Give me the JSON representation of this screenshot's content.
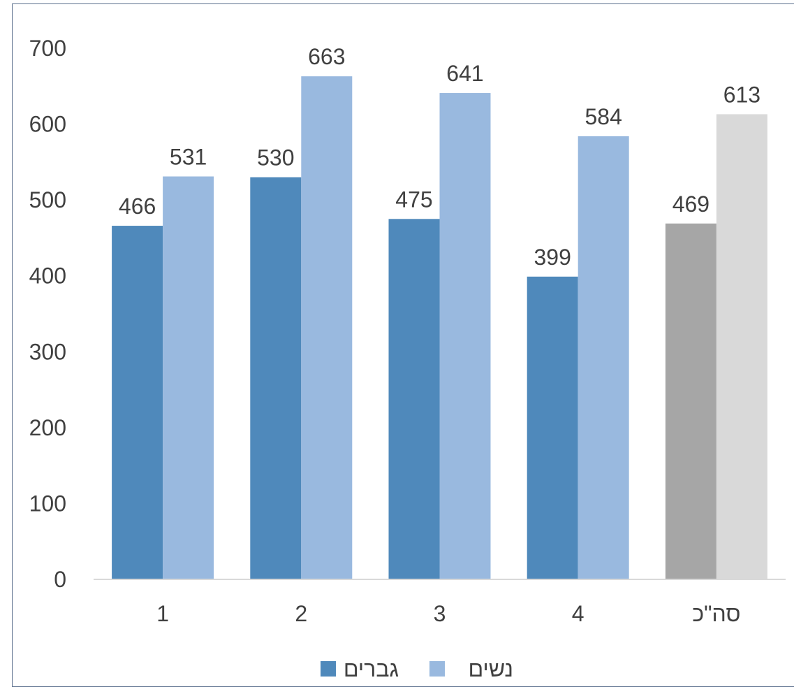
{
  "chart_data": {
    "type": "bar",
    "categories": [
      "1",
      "2",
      "3",
      "4",
      "סה\"כ"
    ],
    "series": [
      {
        "name": "גברים",
        "values": [
          466,
          530,
          475,
          399,
          469
        ]
      },
      {
        "name": "נשים",
        "values": [
          531,
          663,
          641,
          584,
          613
        ]
      }
    ],
    "ylim": [
      0,
      700
    ],
    "yticks": [
      "0",
      "100",
      "200",
      "300",
      "400",
      "500",
      "600",
      "700"
    ],
    "grid": false,
    "legend_position": "bottom",
    "colors": {
      "men": "#4f89bb",
      "women": "#99b9df",
      "men_total": "#a6a6a6",
      "women_total": "#d9d9d9"
    },
    "highlighted_category": "סה\"כ",
    "data_labels": true
  }
}
